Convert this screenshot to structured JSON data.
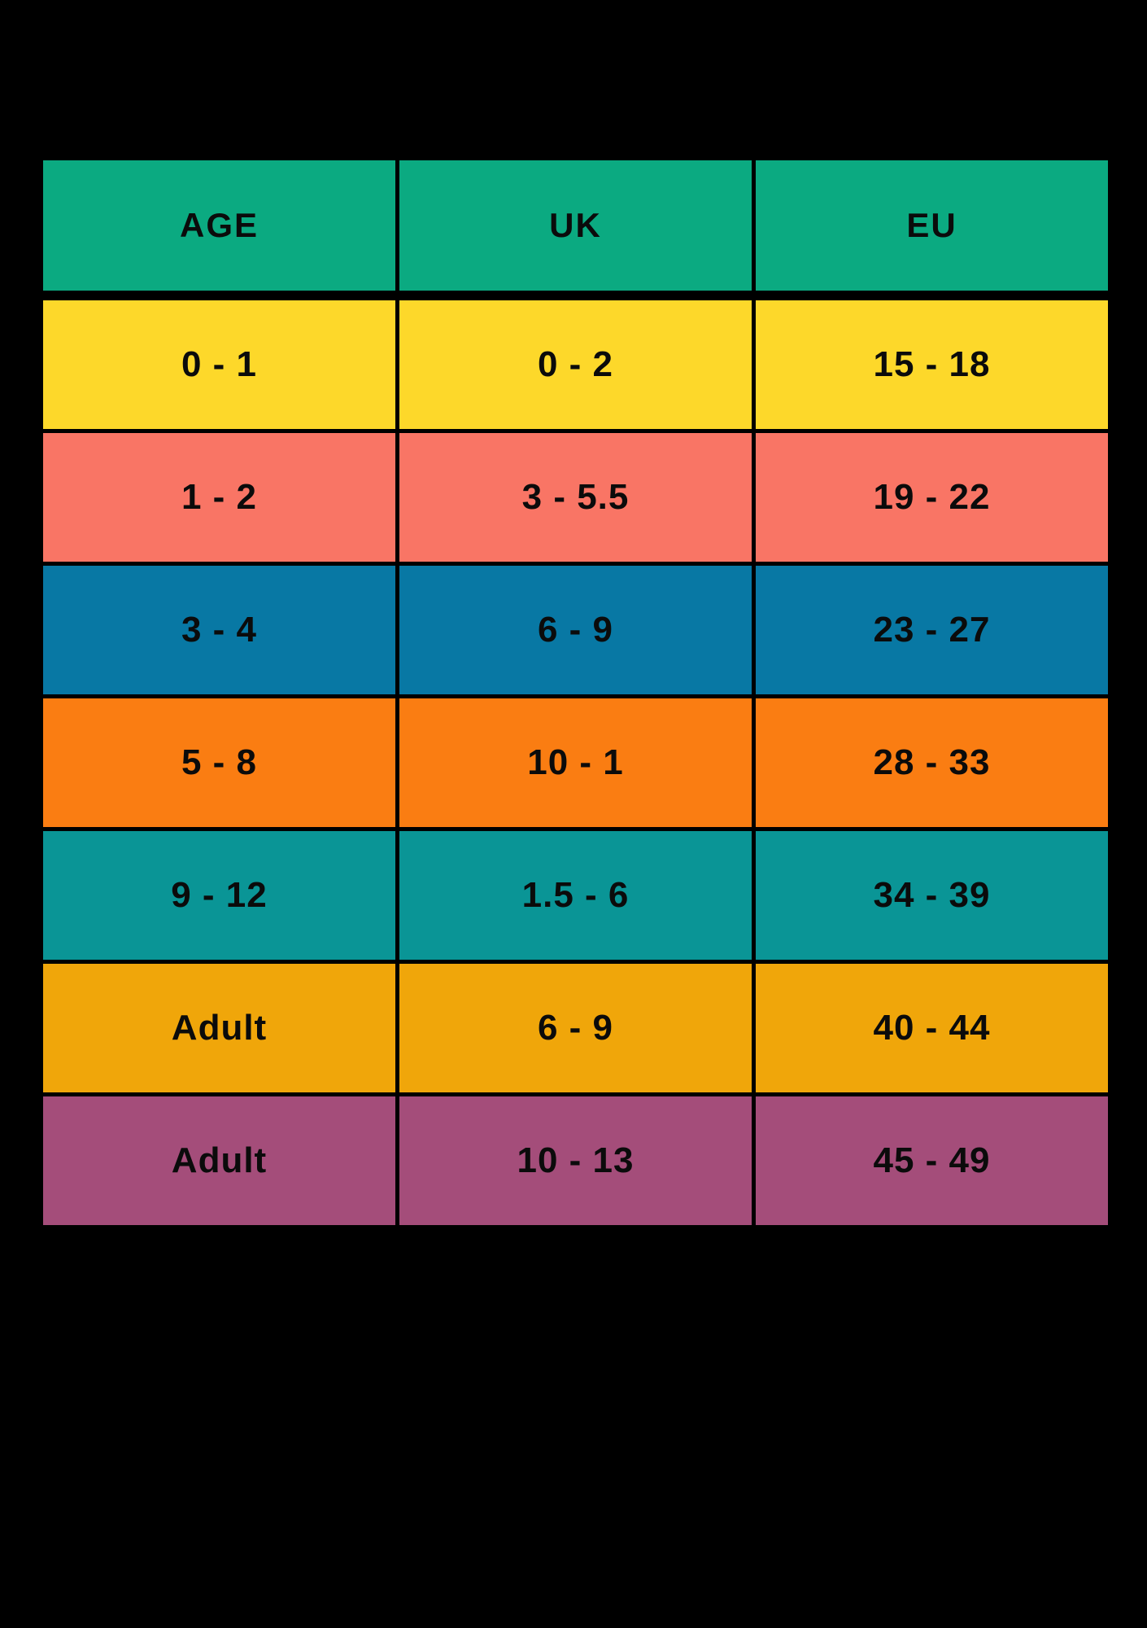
{
  "chart_data": {
    "type": "table",
    "columns": [
      "AGE",
      "UK",
      "EU"
    ],
    "rows": [
      [
        "0 - 1",
        "0 - 2",
        "15 - 18"
      ],
      [
        "1 - 2",
        "3 - 5.5",
        "19 - 22"
      ],
      [
        "3 - 4",
        "6 - 9",
        "23 - 27"
      ],
      [
        "5 - 8",
        "10 - 1",
        "28 - 33"
      ],
      [
        "9 - 12",
        "1.5 - 6",
        "34 - 39"
      ],
      [
        "Adult",
        "6 - 9",
        "40 - 44"
      ],
      [
        "Adult",
        "10 - 13",
        "45 - 49"
      ]
    ],
    "header_color": "#0baa81",
    "row_colors": [
      "#fdd82a",
      "#f97565",
      "#0878a4",
      "#fa7d12",
      "#0a9596",
      "#f0a60a",
      "#a44d7a"
    ],
    "background": "#000000",
    "text_color": "#0b0b0b",
    "grid_color": "#000000",
    "legend_position": "none",
    "grid": "off"
  }
}
